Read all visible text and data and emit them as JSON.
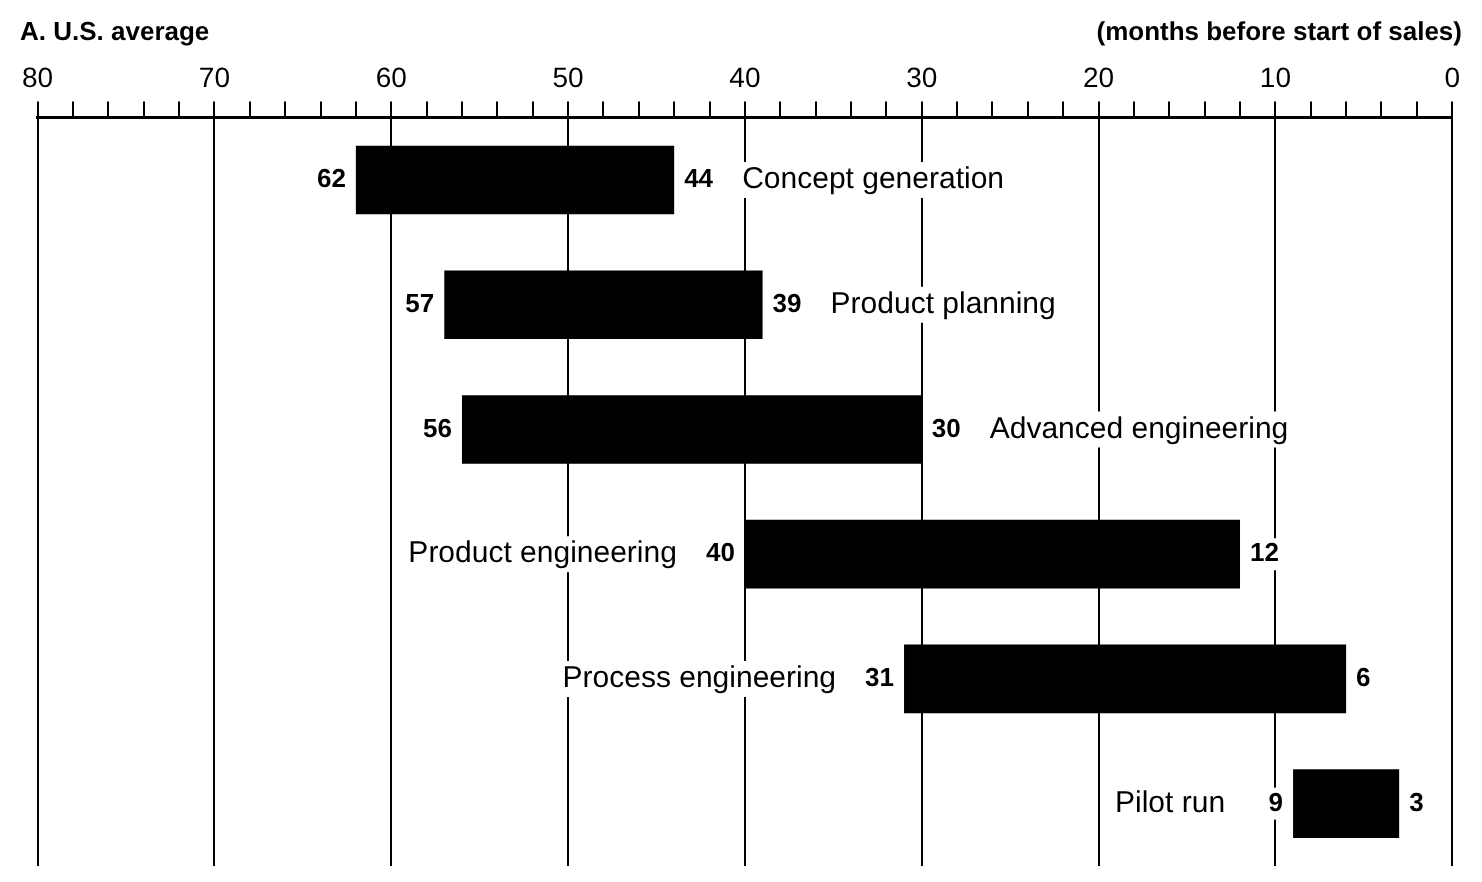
{
  "chart_data": {
    "type": "bar",
    "orientation": "horizontal",
    "title": "A. U.S. average",
    "xlabel": "(months before start of sales)",
    "categories": [
      "Concept generation",
      "Product planning",
      "Advanced engineering",
      "Product engineering",
      "Process engineering",
      "Pilot run"
    ],
    "base": [
      44,
      39,
      30,
      12,
      6,
      3
    ],
    "values": [
      18,
      18,
      26,
      28,
      25,
      6
    ],
    "color": "#000000",
    "xlim": [
      80,
      0
    ],
    "xticks": [
      80,
      {
        "value": 78,
        "label": null
      },
      {
        "value": 76,
        "label": null
      },
      {
        "value": 74,
        "label": null
      },
      {
        "value": 72,
        "label": null
      },
      70,
      {
        "value": 68,
        "label": null
      },
      {
        "value": 66,
        "label": null
      },
      {
        "value": 64,
        "label": null
      },
      {
        "value": 62,
        "label": null
      },
      60,
      {
        "value": 58,
        "label": null
      },
      {
        "value": 56,
        "label": null
      },
      {
        "value": 54,
        "label": null
      },
      {
        "value": 52,
        "label": null
      },
      50,
      {
        "value": 48,
        "label": null
      },
      {
        "value": 46,
        "label": null
      },
      {
        "value": 44,
        "label": null
      },
      {
        "value": 42,
        "label": null
      },
      40,
      {
        "value": 38,
        "label": null
      },
      {
        "value": 36,
        "label": null
      },
      {
        "value": 34,
        "label": null
      },
      {
        "value": 32,
        "label": null
      },
      30,
      {
        "value": 28,
        "label": null
      },
      {
        "value": 26,
        "label": null
      },
      {
        "value": 24,
        "label": null
      },
      {
        "value": 22,
        "label": null
      },
      20,
      {
        "value": 18,
        "label": null
      },
      {
        "value": 16,
        "label": null
      },
      {
        "value": 14,
        "label": null
      },
      {
        "value": 12,
        "label": null
      },
      10,
      {
        "value": 8,
        "label": null
      },
      {
        "value": 6,
        "label": null
      },
      {
        "value": 4,
        "label": null
      },
      {
        "value": 2,
        "label": null
      },
      0
    ],
    "grid": "x",
    "annotations": [
      {
        "text": "62",
        "x": 62,
        "y": "Concept generation"
      },
      {
        "text": "44",
        "x": 44,
        "y": "Concept generation"
      },
      {
        "text": "57",
        "x": 57,
        "y": "Product planning"
      },
      {
        "text": "39",
        "x": 39,
        "y": "Product planning"
      },
      {
        "text": "56",
        "x": 56,
        "y": "Advanced engineering"
      },
      {
        "text": "30",
        "x": 30,
        "y": "Advanced engineering"
      },
      {
        "text": "40",
        "x": 40,
        "y": "Product engineering"
      },
      {
        "text": "12",
        "x": 12,
        "y": "Product engineering"
      },
      {
        "text": "31",
        "x": 31,
        "y": "Process engineering"
      },
      {
        "text": "6",
        "x": 6,
        "y": "Process engineering"
      },
      {
        "text": "9",
        "x": 9,
        "y": "Pilot run"
      },
      {
        "text": "3",
        "x": 3,
        "y": "Pilot run"
      }
    ]
  }
}
